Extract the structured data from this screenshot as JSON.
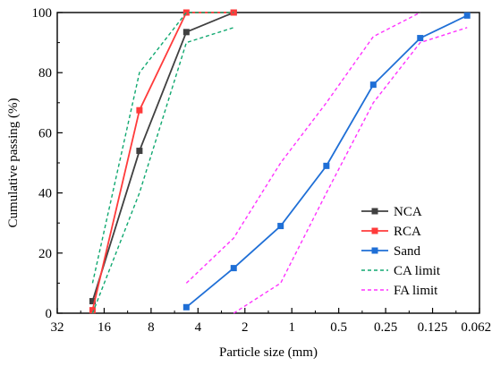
{
  "chart_data": {
    "type": "line",
    "xscale": "log-reversed",
    "xlabel": "Particle size (mm)",
    "ylabel": "Cumulative passing (%)",
    "xlim": [
      32,
      0.0625
    ],
    "ylim": [
      0,
      100
    ],
    "xticks": [
      32,
      16,
      8,
      4,
      2,
      1,
      0.5,
      0.25,
      0.125,
      0.0625
    ],
    "xtick_labels": [
      "32",
      "16",
      "8",
      "4",
      "2",
      "1",
      "0.5",
      "0.25",
      "0.125",
      "0.0625"
    ],
    "yticks": [
      0,
      20,
      40,
      60,
      80,
      100
    ],
    "ytick_labels": [
      "0",
      "20",
      "40",
      "60",
      "80",
      "100"
    ],
    "legend_position": "bottom-right",
    "series": [
      {
        "name": "NCA",
        "style": "solid",
        "marker": "square",
        "color": "#404040",
        "x": [
          19,
          9.5,
          4.75,
          2.36
        ],
        "y": [
          4,
          54,
          93.5,
          100
        ]
      },
      {
        "name": "RCA",
        "style": "solid",
        "marker": "square",
        "color": "#ff3b3b",
        "x": [
          19,
          9.5,
          4.75,
          2.36
        ],
        "y": [
          1,
          67.5,
          100,
          100
        ]
      },
      {
        "name": "Sand",
        "style": "solid",
        "marker": "square",
        "color": "#1f6fd6",
        "x": [
          4.75,
          2.36,
          1.18,
          0.6,
          0.3,
          0.15,
          0.075
        ],
        "y": [
          2,
          15,
          29,
          49,
          76,
          91.5,
          99
        ]
      },
      {
        "name": "CA limit",
        "style": "dashed",
        "marker": "none",
        "color": "#10a870",
        "x": [
          19,
          9.5,
          4.75,
          2.36
        ],
        "y": [
          10,
          80,
          100,
          100
        ]
      },
      {
        "name": "CA limit",
        "style": "dashed",
        "marker": "none",
        "color": "#10a870",
        "x": [
          19,
          9.5,
          4.75,
          2.36
        ],
        "y": [
          0,
          40,
          90,
          95
        ]
      },
      {
        "name": "FA limit",
        "style": "dashed",
        "marker": "none",
        "color": "#ff33ff",
        "x": [
          4.75,
          2.36,
          1.18,
          0.6,
          0.3,
          0.15
        ],
        "y": [
          10,
          25,
          50,
          70,
          92,
          100
        ]
      },
      {
        "name": "FA limit",
        "style": "dashed",
        "marker": "none",
        "color": "#ff33ff",
        "x": [
          2.36,
          1.18,
          0.6,
          0.3,
          0.15,
          0.075
        ],
        "y": [
          0,
          10,
          40,
          70,
          90,
          95
        ]
      }
    ],
    "legend": [
      {
        "name": "NCA",
        "style": "solid",
        "marker": "square",
        "color": "#404040"
      },
      {
        "name": "RCA",
        "style": "solid",
        "marker": "square",
        "color": "#ff3b3b"
      },
      {
        "name": "Sand",
        "style": "solid",
        "marker": "square",
        "color": "#1f6fd6"
      },
      {
        "name": "CA limit",
        "style": "dashed",
        "marker": "none",
        "color": "#10a870"
      },
      {
        "name": "FA limit",
        "style": "dashed",
        "marker": "none",
        "color": "#ff33ff"
      }
    ]
  }
}
